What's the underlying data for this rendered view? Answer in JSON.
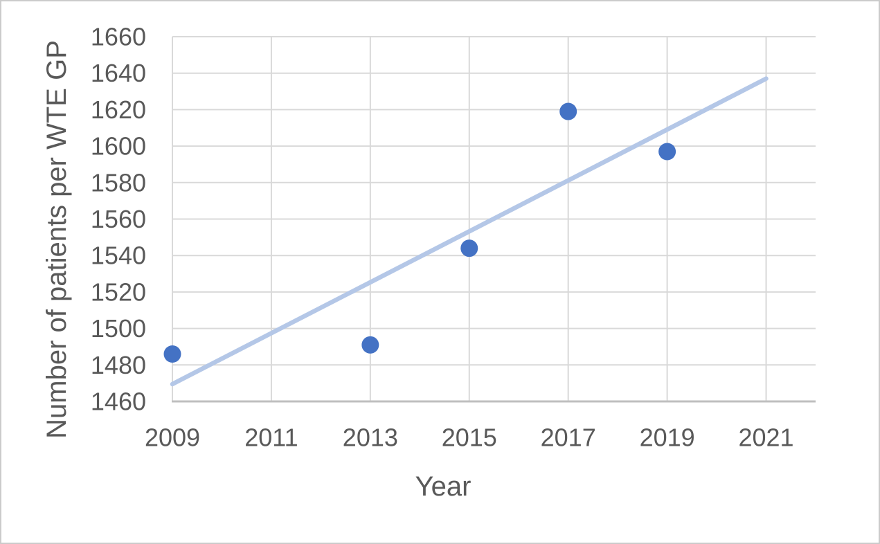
{
  "chart_data": {
    "type": "scatter",
    "xlabel": "Year",
    "ylabel": "Number of patients per WTE GP",
    "x": [
      2009,
      2013,
      2015,
      2017,
      2019
    ],
    "y": [
      1486,
      1491,
      1544,
      1619,
      1597
    ],
    "trendline": {
      "type": "linear",
      "x": [
        2009,
        2021
      ],
      "y": [
        1469.5,
        1637
      ]
    },
    "xlim": [
      2009,
      2022
    ],
    "ylim": [
      1460,
      1660
    ],
    "x_ticks": [
      2009,
      2011,
      2013,
      2015,
      2017,
      2019,
      2021
    ],
    "y_ticks": [
      1460,
      1480,
      1500,
      1520,
      1540,
      1560,
      1580,
      1600,
      1620,
      1640,
      1660
    ],
    "grid": true,
    "legend": false,
    "colors": {
      "marker": "#4472C4",
      "trendline": "#B4C7E7",
      "gridline": "#D9D9D9",
      "axis_line": "#BFBFBF",
      "text": "#595959"
    }
  }
}
